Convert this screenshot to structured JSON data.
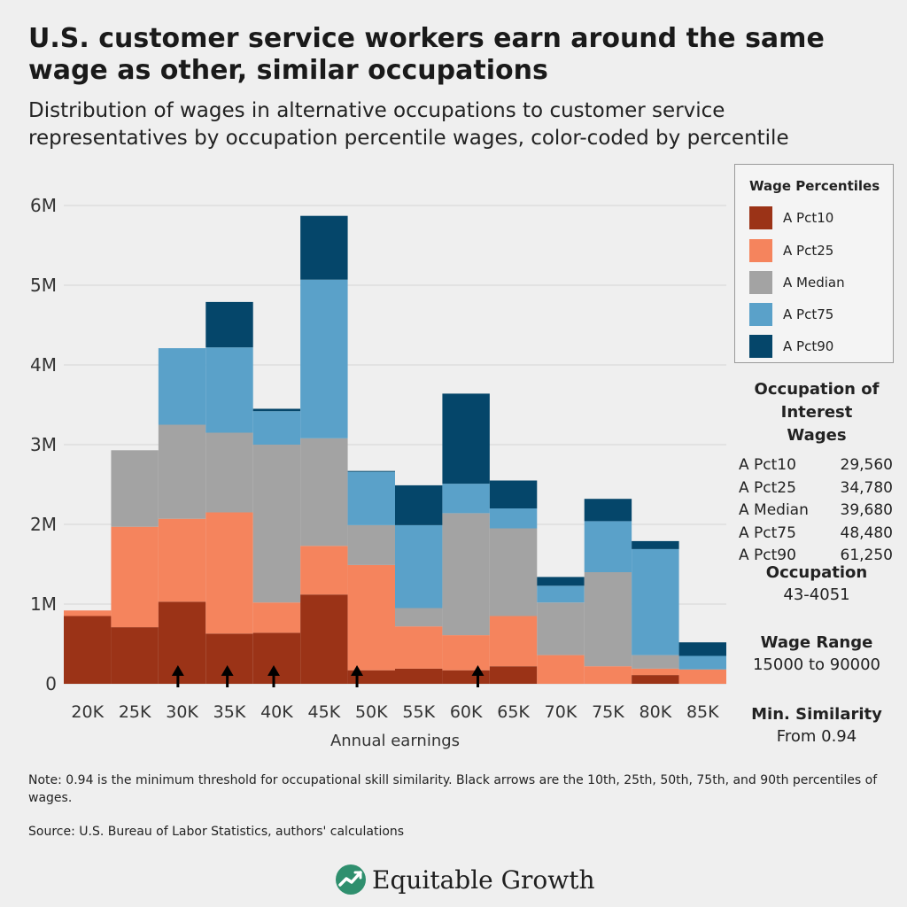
{
  "header": {
    "title": "U.S. customer service workers earn around the same wage as other, similar occupations",
    "subtitle": "Distribution of wages in alternative occupations to customer service representatives by occupation percentile wages, color-coded by percentile"
  },
  "chart_data": {
    "type": "bar",
    "stacked": true,
    "xlabel": "Annual earnings",
    "ylabel": "",
    "ylim": [
      0,
      6300000
    ],
    "y_ticks": [
      0,
      1000000,
      2000000,
      3000000,
      4000000,
      5000000,
      6000000
    ],
    "y_tick_labels": [
      "0",
      "1M",
      "2M",
      "3M",
      "4M",
      "5M",
      "6M"
    ],
    "grid": true,
    "bin_edges": [
      17500,
      22500,
      27500,
      32500,
      37500,
      42500,
      47500,
      52500,
      57500,
      62500,
      67500,
      72500,
      77500,
      82500,
      87500
    ],
    "x_ticks": [
      20000,
      25000,
      30000,
      35000,
      40000,
      45000,
      50000,
      55000,
      60000,
      65000,
      70000,
      75000,
      80000,
      85000
    ],
    "x_tick_labels": [
      "20K",
      "25K",
      "30K",
      "35K",
      "40K",
      "45K",
      "50K",
      "55K",
      "60K",
      "65K",
      "70K",
      "75K",
      "80K",
      "85K"
    ],
    "series": [
      {
        "name": "A Pct10",
        "color": "#9b3317",
        "values": [
          850000,
          710000,
          1030000,
          630000,
          640000,
          1120000,
          170000,
          190000,
          170000,
          220000,
          0,
          0,
          110000,
          0
        ]
      },
      {
        "name": "A Pct25",
        "color": "#f5845d",
        "values": [
          70000,
          1260000,
          1040000,
          1520000,
          380000,
          610000,
          1320000,
          530000,
          440000,
          630000,
          360000,
          220000,
          80000,
          180000
        ]
      },
      {
        "name": "A Median",
        "color": "#a3a3a3",
        "values": [
          0,
          960000,
          1180000,
          1000000,
          1980000,
          1350000,
          500000,
          230000,
          1530000,
          1100000,
          660000,
          1180000,
          170000,
          0
        ]
      },
      {
        "name": "A Pct75",
        "color": "#5aa1c9",
        "values": [
          0,
          0,
          960000,
          1070000,
          420000,
          1990000,
          670000,
          1040000,
          370000,
          250000,
          210000,
          640000,
          1330000,
          170000
        ]
      },
      {
        "name": "A Pct90",
        "color": "#05466a",
        "values": [
          0,
          0,
          0,
          570000,
          30000,
          800000,
          10000,
          500000,
          1130000,
          350000,
          110000,
          280000,
          100000,
          170000
        ]
      }
    ],
    "arrows_at": [
      29560,
      34780,
      39680,
      48480,
      61250
    ],
    "legend_title": "Wage Percentiles",
    "legend_position": "top-right"
  },
  "occupation_wages": {
    "title": "Occupation of Interest Wages",
    "rows": [
      {
        "label": "A Pct10",
        "value": "29,560"
      },
      {
        "label": "A Pct25",
        "value": "34,780"
      },
      {
        "label": "A Median",
        "value": "39,680"
      },
      {
        "label": "A Pct75",
        "value": "48,480"
      },
      {
        "label": "A Pct90",
        "value": "61,250"
      }
    ]
  },
  "occupation": {
    "title": "Occupation",
    "value": "43-4051"
  },
  "wage_range": {
    "title": "Wage Range",
    "value": "15000 to 90000"
  },
  "min_similarity": {
    "title": "Min. Similarity",
    "value": "From 0.94"
  },
  "footer": {
    "note": "Note: 0.94 is the minimum threshold for occupational skill similarity. Black arrows are the 10th, 25th, 50th, 75th, and 90th percentiles of wages.",
    "source": "Source: U.S. Bureau of Labor Statistics, authors' calculations",
    "brand": "Equitable Growth",
    "brand_logo_icon": "equitable-growth-logo-icon"
  }
}
